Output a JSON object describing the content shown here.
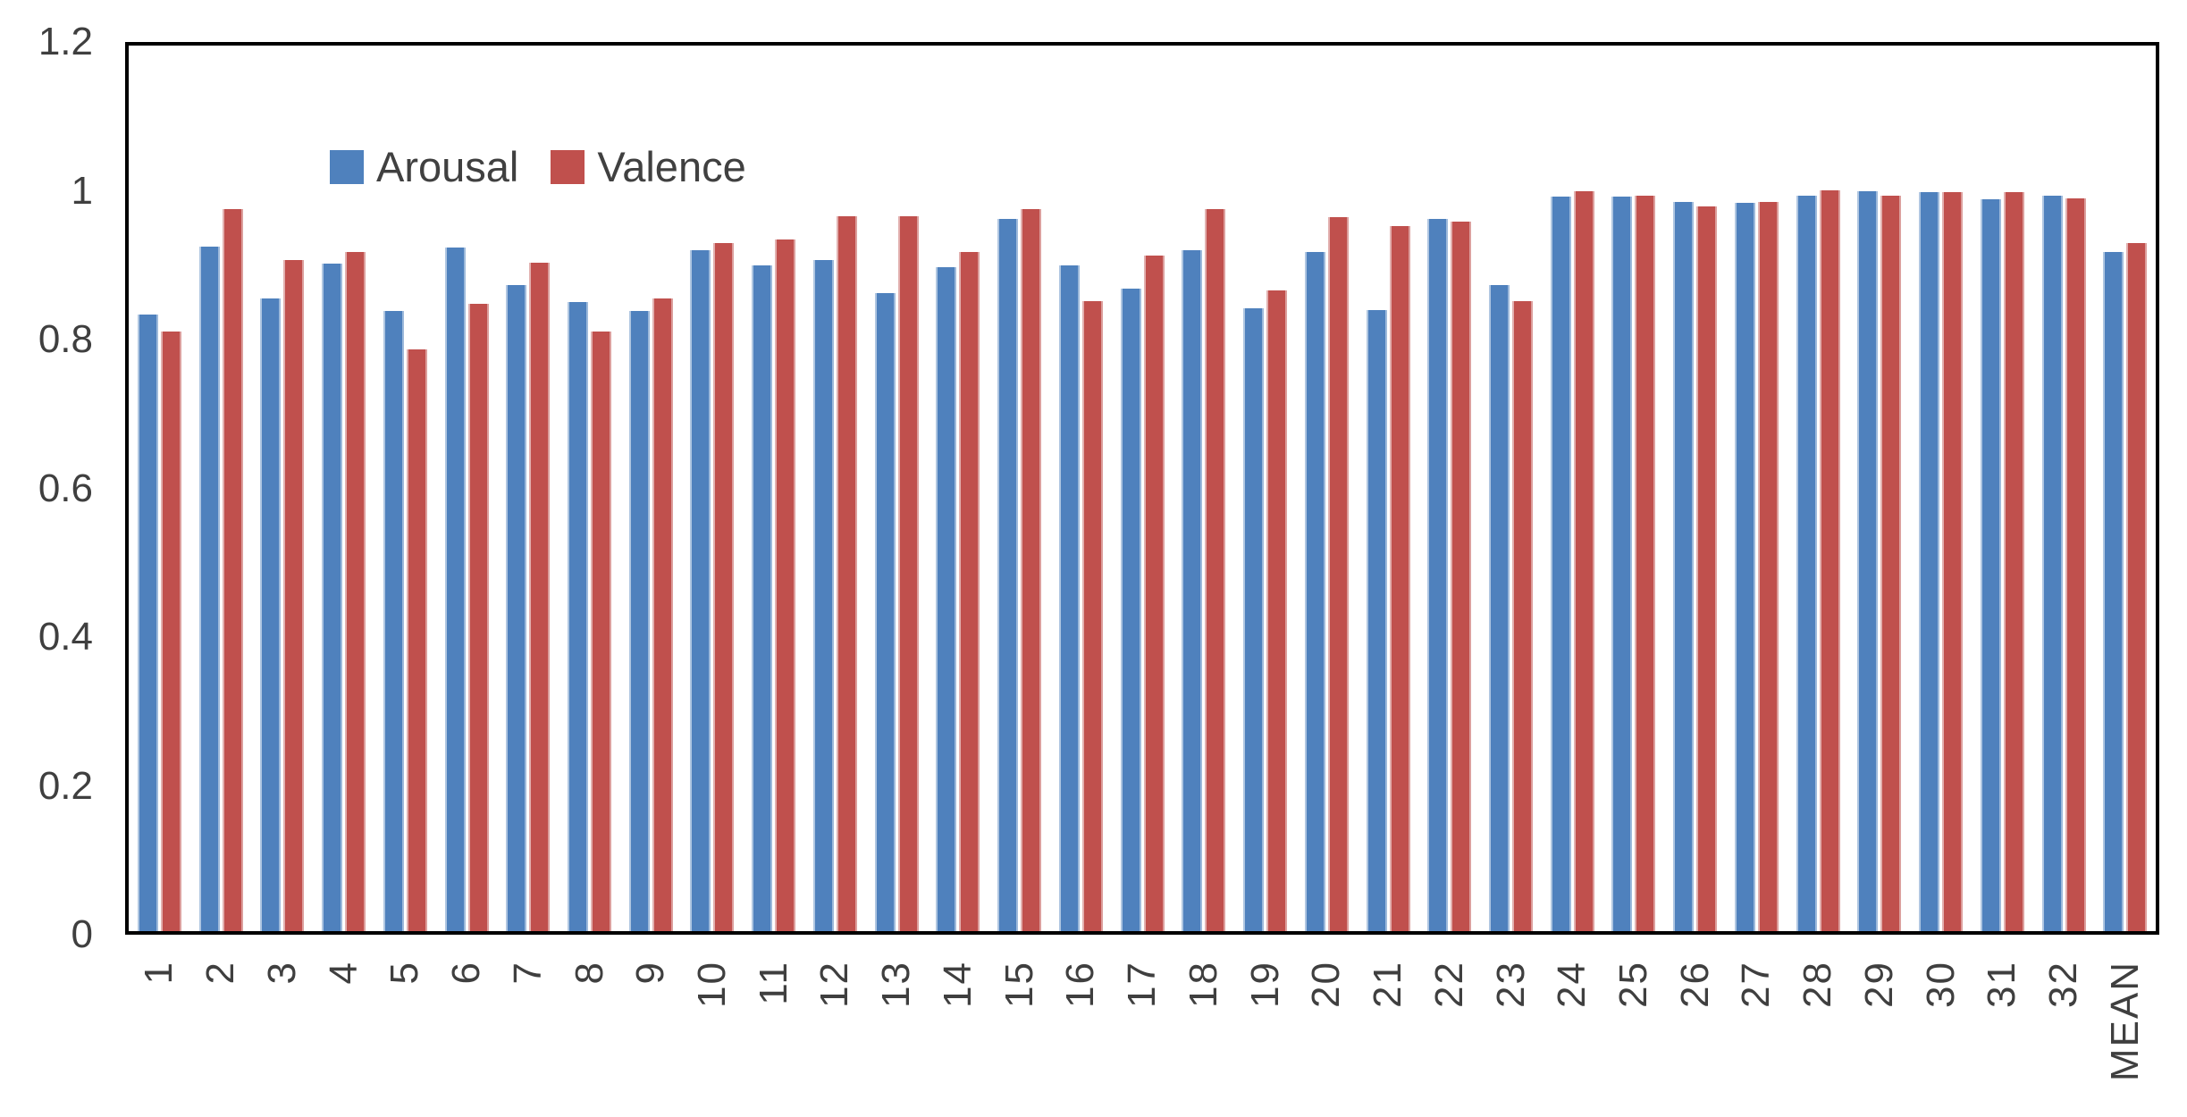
{
  "figure": {
    "background": "#ffffff",
    "axis_color": "#000000",
    "tick_label_color": "#3f3f3f"
  },
  "legend": {
    "position": "top-left-inside",
    "items": [
      {
        "label": "Arousal",
        "color": "#4f81bd"
      },
      {
        "label": "Valence",
        "color": "#c0504d"
      }
    ]
  },
  "y_axis": {
    "min": 0,
    "max": 1.2,
    "tick_values": [
      1.2,
      1,
      0.8,
      0.6,
      0.4,
      0.2,
      0
    ],
    "tick_labels": [
      "1.2",
      "1",
      "0.8",
      "0.6",
      "0.4",
      "0.2",
      "0"
    ]
  },
  "chart_data": {
    "type": "bar",
    "title": "",
    "xlabel": "",
    "ylabel": "",
    "ylim": [
      0,
      1.2
    ],
    "grid": false,
    "legend_position": "top-left-inside",
    "x_tick_rotation": -90,
    "categories": [
      "1",
      "2",
      "3",
      "4",
      "5",
      "6",
      "7",
      "8",
      "9",
      "10",
      "11",
      "12",
      "13",
      "14",
      "15",
      "16",
      "17",
      "18",
      "19",
      "20",
      "21",
      "22",
      "23",
      "24",
      "25",
      "26",
      "27",
      "28",
      "29",
      "30",
      "31",
      "32",
      "MEAN"
    ],
    "series": [
      {
        "name": "Arousal",
        "color": "#4f81bd",
        "values": [
          0.836,
          0.927,
          0.857,
          0.905,
          0.84,
          0.926,
          0.875,
          0.853,
          0.84,
          0.923,
          0.902,
          0.91,
          0.864,
          0.9,
          0.965,
          0.902,
          0.871,
          0.923,
          0.844,
          0.92,
          0.841,
          0.965,
          0.875,
          0.995,
          0.995,
          0.988,
          0.987,
          0.996,
          1.003,
          1.002,
          0.992,
          0.996,
          0.92
        ]
      },
      {
        "name": "Valence",
        "color": "#c0504d",
        "values": [
          0.812,
          0.979,
          0.91,
          0.92,
          0.788,
          0.85,
          0.906,
          0.812,
          0.857,
          0.933,
          0.937,
          0.969,
          0.969,
          0.92,
          0.979,
          0.854,
          0.916,
          0.979,
          0.868,
          0.968,
          0.955,
          0.961,
          0.854,
          1.003,
          0.996,
          0.982,
          0.988,
          1.004,
          0.996,
          1.002,
          1.002,
          0.993,
          0.933
        ]
      }
    ]
  }
}
